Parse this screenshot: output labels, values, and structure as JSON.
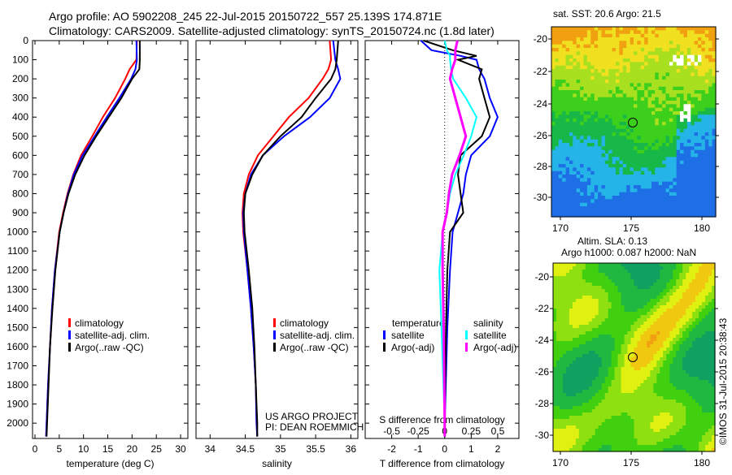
{
  "header": {
    "line1": "Argo profile: AO 5902208_245 22-Jul-2015 20150722_557 25.139S 174.871E",
    "line2": "Climatology: CARS2009. Satellite-adjusted climatology: synTS_20150724.nc (1.8d later)"
  },
  "colors": {
    "climatology": "#ff0000",
    "satellite": "#0000ff",
    "argo": "#000000",
    "s_satellite": "#00ffff",
    "s_argo": "#ff00ff"
  },
  "chart_data": [
    {
      "type": "line",
      "name": "temperature-profile",
      "xlabel": "temperature (deg C)",
      "ylabel": "",
      "xlim": [
        -0.5,
        31.5
      ],
      "ylim": [
        2080,
        0
      ],
      "xticks": [
        "0",
        "5",
        "10",
        "15",
        "20",
        "25",
        "30"
      ],
      "yticks": [
        "0",
        "100",
        "200",
        "300",
        "400",
        "500",
        "600",
        "700",
        "800",
        "900",
        "1000",
        "1100",
        "1200",
        "1300",
        "1400",
        "1500",
        "1600",
        "1700",
        "1800",
        "1900",
        "2000"
      ],
      "legend": [
        "climatology",
        "satellite-adj. clim.",
        "Argo(..raw -QC)"
      ],
      "depth": [
        0,
        100,
        150,
        200,
        300,
        400,
        500,
        600,
        700,
        800,
        900,
        1000,
        1200,
        1400,
        1600,
        1800,
        2000,
        2070
      ],
      "series": [
        {
          "name": "climatology",
          "values": [
            21.0,
            20.9,
            19.5,
            18.6,
            16.5,
            14.0,
            11.8,
            9.5,
            7.9,
            6.7,
            5.8,
            5.0,
            4.1,
            3.5,
            3.1,
            2.7,
            2.4,
            2.3
          ]
        },
        {
          "name": "satellite-adj. clim.",
          "values": [
            20.9,
            21.0,
            20.7,
            19.8,
            17.4,
            14.8,
            12.3,
            9.8,
            8.0,
            6.8,
            5.9,
            5.1,
            4.1,
            3.5,
            3.1,
            2.7,
            2.4,
            2.3
          ]
        },
        {
          "name": "Argo",
          "values": [
            21.6,
            21.6,
            21.5,
            20.0,
            17.8,
            15.2,
            12.6,
            10.2,
            8.3,
            6.9,
            5.9,
            5.1,
            4.2,
            3.6,
            3.1,
            2.8,
            2.5,
            2.4
          ]
        }
      ]
    },
    {
      "type": "line",
      "name": "salinity-profile",
      "xlabel": "salinity",
      "xlim": [
        33.8,
        36.1
      ],
      "ylim": [
        2080,
        0
      ],
      "xticks": [
        "34",
        "34.5",
        "35",
        "35.5",
        "36"
      ],
      "legend": [
        "climatology",
        "satellite-adj. clim.",
        "Argo(..raw -QC)"
      ],
      "annotation": [
        "US ARGO PROJECT",
        "PI: DEAN ROEMMICH"
      ],
      "depth": [
        0,
        100,
        150,
        200,
        300,
        400,
        500,
        600,
        700,
        800,
        900,
        1000,
        1200,
        1400,
        1600,
        1800,
        2000,
        2070
      ],
      "series": [
        {
          "name": "climatology",
          "values": [
            35.7,
            35.72,
            35.68,
            35.6,
            35.4,
            35.12,
            34.9,
            34.68,
            34.55,
            34.48,
            34.46,
            34.47,
            34.53,
            34.58,
            34.62,
            34.65,
            34.66,
            34.67
          ]
        },
        {
          "name": "satellite-adj. clim.",
          "values": [
            35.75,
            35.78,
            35.82,
            35.85,
            35.7,
            35.42,
            35.05,
            34.75,
            34.58,
            34.5,
            34.47,
            34.48,
            34.53,
            34.58,
            34.62,
            34.65,
            34.66,
            34.67
          ]
        },
        {
          "name": "Argo",
          "values": [
            35.82,
            35.8,
            35.78,
            35.72,
            35.5,
            35.3,
            35.0,
            34.75,
            34.6,
            34.5,
            34.48,
            34.49,
            34.55,
            34.6,
            34.63,
            34.65,
            34.67,
            34.67
          ]
        }
      ]
    },
    {
      "type": "line",
      "name": "difference-profile",
      "xlabel": "T difference from climatology",
      "x2label": "S difference from climatology",
      "xlim": [
        -3,
        2.8
      ],
      "ylim": [
        2080,
        0
      ],
      "xticks": [
        "-2",
        "-1",
        "0",
        "1",
        "2"
      ],
      "x2ticks": [
        "-0.5",
        "-0.25",
        "0",
        "0.25",
        "0.5"
      ],
      "legend_t_title": "temperature",
      "legend_s_title": "salinity",
      "legend": [
        "satellite",
        "Argo(-adj)",
        "satellite",
        "Argo(-adj)"
      ],
      "depth": [
        0,
        50,
        80,
        100,
        150,
        200,
        300,
        400,
        500,
        600,
        700,
        800,
        900,
        1000,
        1200,
        1500,
        2000,
        2070
      ],
      "series": [
        {
          "name": "T satellite",
          "values": [
            -0.9,
            -0.5,
            0.6,
            1.2,
            1.3,
            1.5,
            1.7,
            2.0,
            1.7,
            1.0,
            0.8,
            0.7,
            0.5,
            0.3,
            0.2,
            0.1,
            0.0,
            0.0
          ]
        },
        {
          "name": "T Argo(-adj)",
          "values": [
            -0.8,
            0.3,
            1.2,
            0.5,
            1.4,
            1.3,
            1.5,
            1.7,
            1.4,
            0.6,
            0.5,
            0.6,
            0.7,
            0.2,
            0.1,
            0.05,
            0.0,
            0.0
          ]
        },
        {
          "name": "S satellite",
          "values": [
            0.0,
            0.02,
            0.05,
            0.05,
            0.06,
            0.08,
            0.2,
            0.3,
            0.25,
            0.18,
            0.1,
            0.05,
            0.02,
            -0.02,
            -0.05,
            -0.03,
            0.0,
            0.0
          ]
        },
        {
          "name": "S Argo(-adj)",
          "values": [
            0.12,
            0.1,
            0.1,
            0.1,
            0.07,
            0.05,
            0.1,
            0.15,
            0.2,
            0.14,
            0.07,
            0.04,
            0.02,
            -0.02,
            -0.02,
            -0.01,
            0.0,
            0.0
          ]
        }
      ]
    }
  ],
  "maps": [
    {
      "title": "sat. SST: 20.6 Argo: 21.5",
      "xticks": [
        "170",
        "175",
        "180"
      ],
      "yticks": [
        "-20",
        "-22",
        "-24",
        "-26",
        "-28",
        "-30"
      ]
    },
    {
      "title1": "Altim. SLA: 0.13",
      "title2": "Argo h1000: 0.087 h2000: NaN",
      "xticks": [
        "170",
        "175",
        "180"
      ],
      "yticks": [
        "-20",
        "-22",
        "-24",
        "-26",
        "-28",
        "-30"
      ]
    }
  ],
  "footer": {
    "stamp": "©IMOS 31-Jul-2015 20:38:43"
  }
}
